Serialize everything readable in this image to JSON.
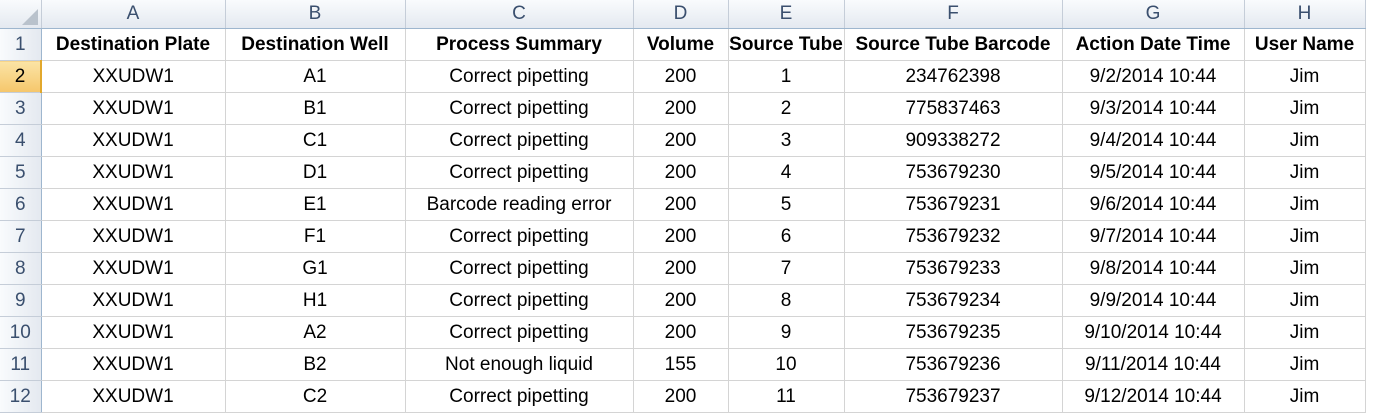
{
  "columns": [
    "A",
    "B",
    "C",
    "D",
    "E",
    "F",
    "G",
    "H"
  ],
  "header_row": {
    "row_number": "1",
    "cells": [
      "Destination Plate",
      "Destination Well",
      "Process Summary",
      "Volume",
      "Source Tube",
      "Source Tube Barcode",
      "Action Date Time",
      "User Name"
    ]
  },
  "rows": [
    {
      "row_number": "2",
      "cells": [
        "XXUDW1",
        "A1",
        "Correct pipetting",
        "200",
        "1",
        "234762398",
        "9/2/2014 10:44",
        "Jim"
      ]
    },
    {
      "row_number": "3",
      "cells": [
        "XXUDW1",
        "B1",
        "Correct pipetting",
        "200",
        "2",
        "775837463",
        "9/3/2014 10:44",
        "Jim"
      ]
    },
    {
      "row_number": "4",
      "cells": [
        "XXUDW1",
        "C1",
        "Correct pipetting",
        "200",
        "3",
        "909338272",
        "9/4/2014 10:44",
        "Jim"
      ]
    },
    {
      "row_number": "5",
      "cells": [
        "XXUDW1",
        "D1",
        "Correct pipetting",
        "200",
        "4",
        "753679230",
        "9/5/2014 10:44",
        "Jim"
      ]
    },
    {
      "row_number": "6",
      "cells": [
        "XXUDW1",
        "E1",
        "Barcode reading error",
        "200",
        "5",
        "753679231",
        "9/6/2014 10:44",
        "Jim"
      ]
    },
    {
      "row_number": "7",
      "cells": [
        "XXUDW1",
        "F1",
        "Correct pipetting",
        "200",
        "6",
        "753679232",
        "9/7/2014 10:44",
        "Jim"
      ]
    },
    {
      "row_number": "8",
      "cells": [
        "XXUDW1",
        "G1",
        "Correct pipetting",
        "200",
        "7",
        "753679233",
        "9/8/2014 10:44",
        "Jim"
      ]
    },
    {
      "row_number": "9",
      "cells": [
        "XXUDW1",
        "H1",
        "Correct pipetting",
        "200",
        "8",
        "753679234",
        "9/9/2014 10:44",
        "Jim"
      ]
    },
    {
      "row_number": "10",
      "cells": [
        "XXUDW1",
        "A2",
        "Correct pipetting",
        "200",
        "9",
        "753679235",
        "9/10/2014 10:44",
        "Jim"
      ]
    },
    {
      "row_number": "11",
      "cells": [
        "XXUDW1",
        "B2",
        "Not enough liquid",
        "155",
        "10",
        "753679236",
        "9/11/2014 10:44",
        "Jim"
      ]
    },
    {
      "row_number": "12",
      "cells": [
        "XXUDW1",
        "C2",
        "Correct pipetting",
        "200",
        "11",
        "753679237",
        "9/12/2014 10:44",
        "Jim"
      ]
    }
  ],
  "selected_row": "2",
  "colors": {
    "header_bg": "#e4e9f0",
    "header_text": "#3a4f6e",
    "selected_row_header": "#f5c66b",
    "gridline": "#d4d4d4"
  }
}
